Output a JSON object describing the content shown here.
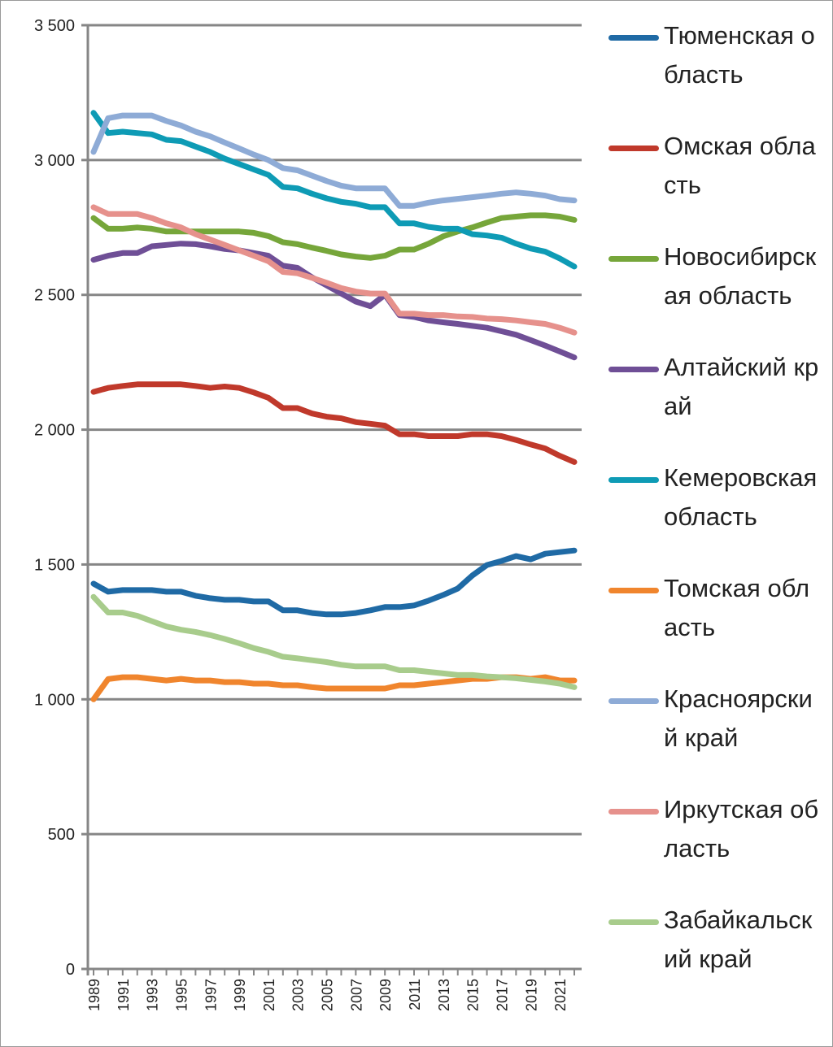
{
  "chart_data": {
    "type": "line",
    "title": "",
    "xlabel": "",
    "ylabel": "",
    "ylim": [
      0,
      3500
    ],
    "yticks": [
      0,
      500,
      1000,
      1500,
      2000,
      2500,
      3000,
      3500
    ],
    "ytick_labels": [
      "0",
      "500",
      "1 000",
      "1 500",
      "2 000",
      "2 500",
      "3 000",
      "3 500"
    ],
    "x": [
      1989,
      1990,
      1991,
      1992,
      1993,
      1994,
      1995,
      1996,
      1997,
      1998,
      1999,
      2000,
      2001,
      2002,
      2003,
      2004,
      2005,
      2006,
      2007,
      2008,
      2009,
      2010,
      2011,
      2012,
      2013,
      2014,
      2015,
      2016,
      2017,
      2018,
      2019,
      2020,
      2021,
      2022
    ],
    "xtick_labels": [
      "1989",
      "1991",
      "1993",
      "1995",
      "1997",
      "1999",
      "2001",
      "2003",
      "2005",
      "2007",
      "2009",
      "2011",
      "2013",
      "2015",
      "2017",
      "2019",
      "2021"
    ],
    "grid": true,
    "legend_position": "right",
    "series": [
      {
        "name": "Тюменская область",
        "color": "#1f6aa5",
        "values": [
          1429,
          1399,
          1405,
          1405,
          1405,
          1399,
          1399,
          1384,
          1375,
          1369,
          1369,
          1363,
          1363,
          1330,
          1330,
          1320,
          1315,
          1315,
          1320,
          1330,
          1342,
          1342,
          1348,
          1366,
          1387,
          1411,
          1459,
          1498,
          1513,
          1531,
          1519,
          1540,
          1546,
          1552
        ]
      },
      {
        "name": "Омская область",
        "color": "#c0392b",
        "values": [
          2140,
          2155,
          2162,
          2168,
          2168,
          2168,
          2168,
          2162,
          2155,
          2160,
          2155,
          2138,
          2118,
          2080,
          2080,
          2060,
          2048,
          2042,
          2028,
          2022,
          2015,
          1983,
          1983,
          1976,
          1976,
          1976,
          1983,
          1983,
          1976,
          1962,
          1945,
          1930,
          1903,
          1880
        ]
      },
      {
        "name": "Новосибирская область",
        "color": "#76a63a",
        "values": [
          2785,
          2745,
          2745,
          2750,
          2745,
          2735,
          2735,
          2735,
          2735,
          2735,
          2735,
          2730,
          2718,
          2695,
          2688,
          2675,
          2663,
          2650,
          2642,
          2637,
          2645,
          2668,
          2668,
          2690,
          2717,
          2735,
          2750,
          2768,
          2785,
          2790,
          2795,
          2795,
          2790,
          2778
        ]
      },
      {
        "name": "Алтайский край",
        "color": "#6f4f96",
        "values": [
          2630,
          2645,
          2655,
          2655,
          2680,
          2685,
          2690,
          2688,
          2680,
          2670,
          2665,
          2655,
          2645,
          2608,
          2600,
          2565,
          2535,
          2505,
          2475,
          2458,
          2500,
          2425,
          2418,
          2405,
          2398,
          2392,
          2385,
          2378,
          2365,
          2352,
          2332,
          2312,
          2290,
          2268
        ]
      },
      {
        "name": "Кемеровская область",
        "color": "#0e9bb5",
        "values": [
          3175,
          3100,
          3105,
          3100,
          3095,
          3075,
          3070,
          3050,
          3030,
          3005,
          2985,
          2965,
          2945,
          2900,
          2895,
          2875,
          2858,
          2845,
          2838,
          2825,
          2825,
          2765,
          2765,
          2752,
          2745,
          2745,
          2725,
          2720,
          2712,
          2690,
          2672,
          2660,
          2635,
          2605
        ]
      },
      {
        "name": "Томская область",
        "color": "#f0852d",
        "values": [
          1000,
          1075,
          1082,
          1082,
          1076,
          1070,
          1076,
          1070,
          1070,
          1064,
          1064,
          1058,
          1058,
          1052,
          1052,
          1045,
          1040,
          1040,
          1040,
          1040,
          1040,
          1052,
          1052,
          1058,
          1064,
          1070,
          1076,
          1076,
          1082,
          1082,
          1076,
          1082,
          1070,
          1070
        ]
      },
      {
        "name": "Красноярский край",
        "color": "#8eabd6",
        "values": [
          3030,
          3155,
          3165,
          3165,
          3165,
          3145,
          3128,
          3105,
          3088,
          3065,
          3043,
          3020,
          3000,
          2970,
          2962,
          2942,
          2922,
          2905,
          2895,
          2895,
          2895,
          2830,
          2830,
          2842,
          2850,
          2856,
          2862,
          2868,
          2875,
          2880,
          2875,
          2868,
          2855,
          2850
        ]
      },
      {
        "name": "Иркутская область",
        "color": "#e6918c",
        "values": [
          2825,
          2800,
          2800,
          2800,
          2785,
          2765,
          2750,
          2725,
          2705,
          2685,
          2665,
          2645,
          2625,
          2585,
          2580,
          2563,
          2545,
          2525,
          2512,
          2505,
          2505,
          2430,
          2430,
          2425,
          2425,
          2420,
          2418,
          2412,
          2410,
          2405,
          2398,
          2392,
          2378,
          2360
        ]
      },
      {
        "name": "Забайкальский край",
        "color": "#a8cc8c",
        "values": [
          1380,
          1322,
          1322,
          1310,
          1290,
          1270,
          1258,
          1250,
          1238,
          1224,
          1208,
          1190,
          1176,
          1158,
          1152,
          1145,
          1138,
          1128,
          1122,
          1122,
          1122,
          1108,
          1108,
          1102,
          1096,
          1090,
          1090,
          1085,
          1082,
          1078,
          1072,
          1066,
          1058,
          1045
        ]
      }
    ]
  }
}
